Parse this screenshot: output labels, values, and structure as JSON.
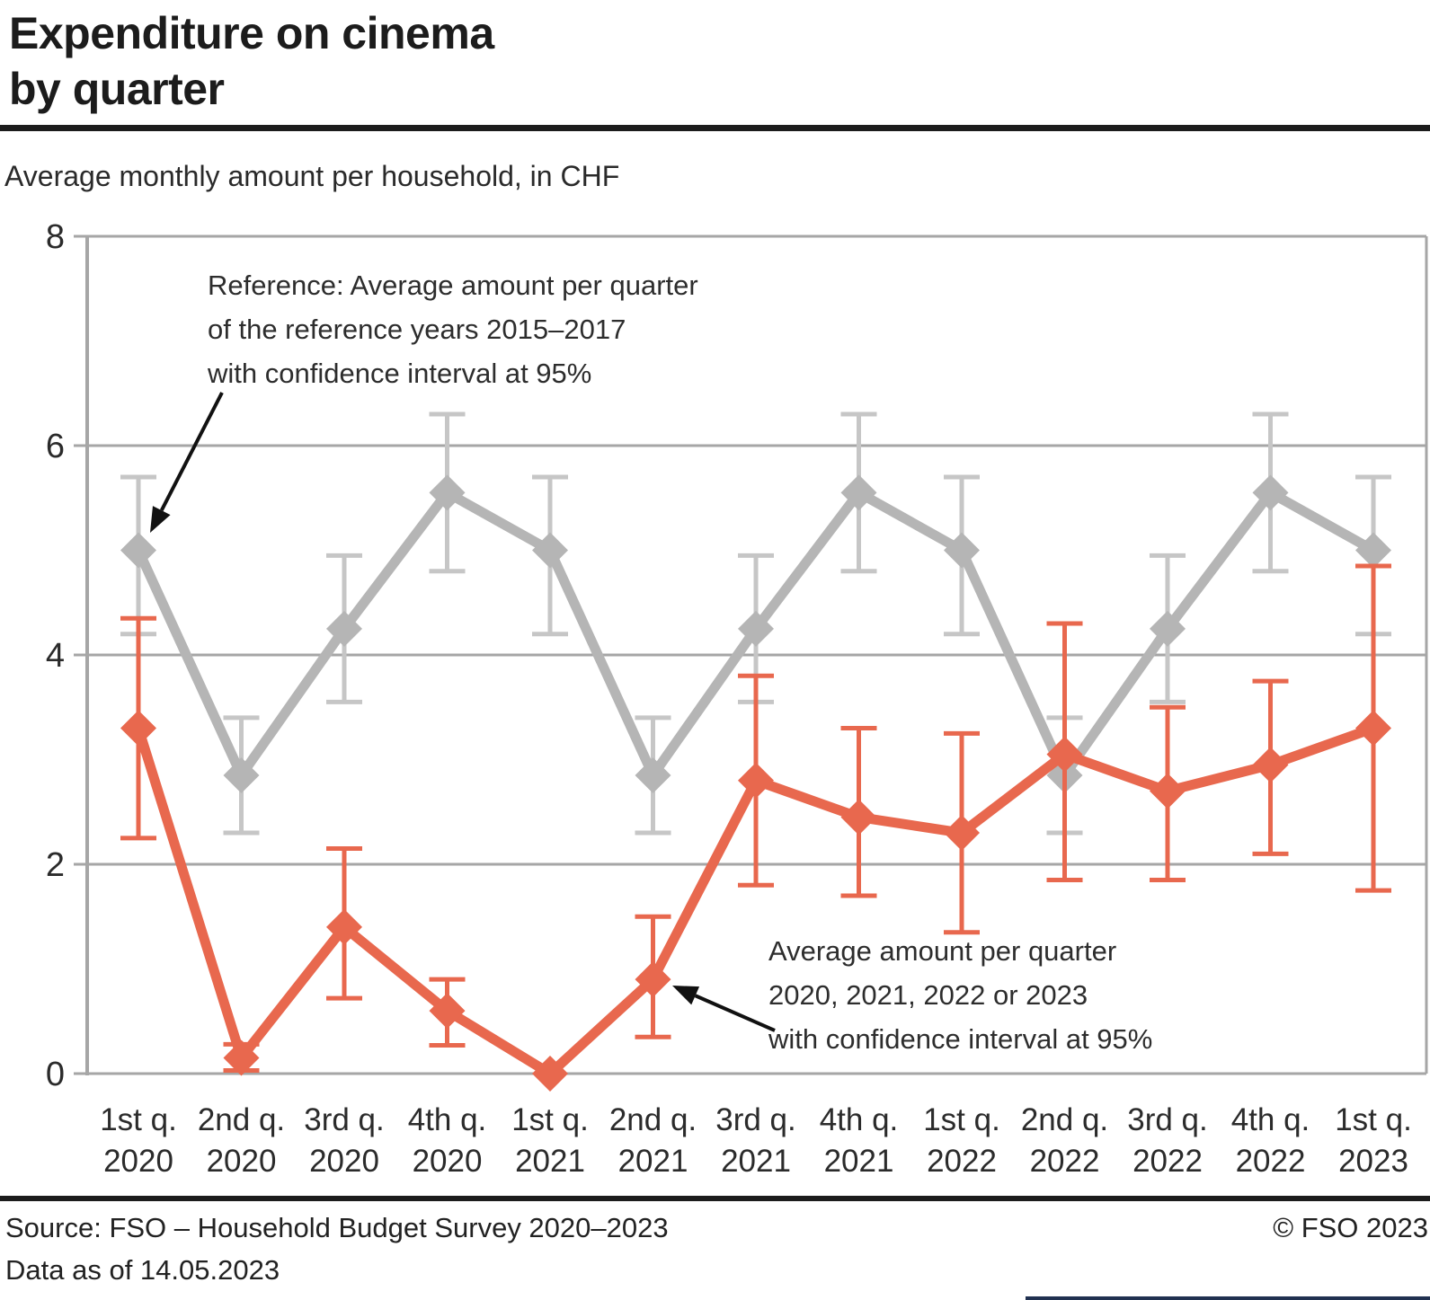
{
  "header": {
    "title_line1": "Expenditure on cinema",
    "title_line2": "by quarter",
    "subtitle": "Average monthly amount per household, in CHF"
  },
  "annotations": {
    "reference": [
      "Reference: Average amount per quarter",
      "of the reference years 2015–2017",
      "with confidence interval at 95%"
    ],
    "actual": [
      "Average amount per quarter",
      "2020, 2021, 2022 or 2023",
      "with confidence interval at 95%"
    ]
  },
  "footer": {
    "source": "Source: FSO – Household Budget Survey 2020–2023",
    "copyright": "© FSO 2023",
    "data_as_of": "Data as of 14.05.2023"
  },
  "colors": {
    "grid": "#a6a6a6",
    "axis_text": "#2b2b2b",
    "text": "#1f1f1f",
    "accent_red": "#e8684e",
    "reference_gray": "#b5b5b5",
    "reference_ci_gray": "#c6c6c6",
    "arrow_black": "#111111",
    "footer_accent_navy": "#203150"
  },
  "chart_data": {
    "type": "line",
    "title": "Expenditure on cinema by quarter",
    "subtitle": "Average monthly amount per household, in CHF",
    "ylim": [
      0,
      8
    ],
    "yticks": [
      0,
      2,
      4,
      6,
      8
    ],
    "grid": true,
    "legend_position": "annotations-with-arrows",
    "categories_quarter": [
      "1st q.",
      "2nd q.",
      "3rd q.",
      "4th q.",
      "1st q.",
      "2nd q.",
      "3rd q.",
      "4th q.",
      "1st q.",
      "2nd q.",
      "3rd q.",
      "4th q.",
      "1st q."
    ],
    "categories_year": [
      "2020",
      "2020",
      "2020",
      "2020",
      "2021",
      "2021",
      "2021",
      "2021",
      "2022",
      "2022",
      "2022",
      "2022",
      "2023"
    ],
    "confidence_level": "95%",
    "series": [
      {
        "name": "Reference: Average amount per quarter of the reference years 2015–2017 with confidence interval at 95%",
        "color": "#b5b5b5",
        "ci_color": "#c6c6c6",
        "values": [
          5.0,
          2.85,
          4.25,
          5.55,
          5.0,
          2.85,
          4.25,
          5.55,
          5.0,
          2.85,
          4.25,
          5.55,
          5.0
        ],
        "ci_low": [
          4.2,
          2.3,
          3.55,
          4.8,
          4.2,
          2.3,
          3.55,
          4.8,
          4.2,
          2.3,
          3.55,
          4.8,
          4.2
        ],
        "ci_high": [
          5.7,
          3.4,
          4.95,
          6.3,
          5.7,
          3.4,
          4.95,
          6.3,
          5.7,
          3.4,
          4.95,
          6.3,
          5.7
        ]
      },
      {
        "name": "Average amount per quarter 2020, 2021, 2022 or 2023 with confidence interval at 95%",
        "color": "#e8684e",
        "ci_color": "#e8684e",
        "values": [
          3.3,
          0.15,
          1.4,
          0.6,
          0,
          0.9,
          2.8,
          2.45,
          2.3,
          3.05,
          2.7,
          2.95,
          3.3
        ],
        "ci_low": [
          2.25,
          0.03,
          0.72,
          0.27,
          null,
          0.35,
          1.8,
          1.7,
          1.35,
          1.85,
          1.85,
          2.1,
          1.75
        ],
        "ci_high": [
          4.35,
          0.28,
          2.15,
          0.9,
          null,
          1.5,
          3.8,
          3.3,
          3.25,
          4.3,
          3.5,
          3.75,
          4.85
        ]
      }
    ]
  }
}
